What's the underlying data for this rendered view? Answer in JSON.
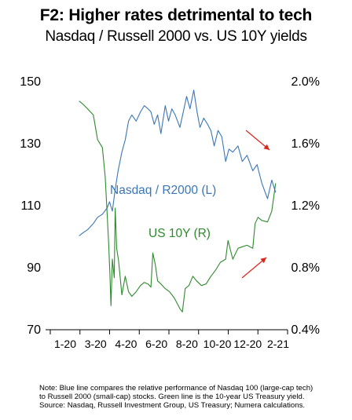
{
  "chart_data": {
    "type": "line",
    "title": "F2: Higher rates detrimental to tech",
    "subtitle": "Nasdaq / Russell 2000 vs. US 10Y yields",
    "x_ticks": [
      "1-20",
      "3-20",
      "4-20",
      "6-20",
      "8-20",
      "10-20",
      "12-20",
      "2-21"
    ],
    "left_axis": {
      "ticks": [
        "150",
        "130",
        "110",
        "90",
        "70"
      ],
      "ylim": [
        70,
        150
      ]
    },
    "right_axis": {
      "ticks": [
        "2.0%",
        "1.6%",
        "1.2%",
        "0.8%",
        "0.4%"
      ],
      "ylim": [
        0.4,
        2.0
      ]
    },
    "grid": false,
    "series": [
      {
        "name": "Nasdaq / R2000 (L)",
        "axis": "left",
        "color": "#3a76b5",
        "x": [
          "2020-01-02",
          "2020-01-10",
          "2020-01-20",
          "2020-02-01",
          "2020-02-10",
          "2020-02-20",
          "2020-03-01",
          "2020-03-06",
          "2020-03-12",
          "2020-03-18",
          "2020-03-24",
          "2020-04-01",
          "2020-04-08",
          "2020-04-15",
          "2020-04-22",
          "2020-05-01",
          "2020-05-10",
          "2020-05-18",
          "2020-05-26",
          "2020-06-01",
          "2020-06-08",
          "2020-06-15",
          "2020-06-22",
          "2020-07-01",
          "2020-07-08",
          "2020-07-15",
          "2020-07-22",
          "2020-08-01",
          "2020-08-08",
          "2020-08-15",
          "2020-08-22",
          "2020-08-30",
          "2020-09-06",
          "2020-09-12",
          "2020-09-20",
          "2020-09-28",
          "2020-10-05",
          "2020-10-12",
          "2020-10-20",
          "2020-10-28",
          "2020-11-05",
          "2020-11-12",
          "2020-11-20",
          "2020-12-01",
          "2020-12-10",
          "2020-12-20",
          "2021-01-01",
          "2021-01-10",
          "2021-01-20",
          "2021-02-01",
          "2021-02-10",
          "2021-02-18"
        ],
        "values": [
          100,
          101,
          102,
          104,
          106,
          107,
          109,
          111,
          108,
          115,
          121,
          127,
          131,
          137,
          139,
          137,
          140,
          142,
          141,
          140,
          136,
          139,
          133,
          142,
          137,
          141,
          139,
          135,
          140,
          145,
          141,
          147,
          140,
          135,
          138,
          136,
          134,
          129,
          134,
          132,
          124,
          128,
          127,
          129,
          124,
          126,
          121,
          123,
          117,
          112,
          118,
          114
        ]
      },
      {
        "name": "US 10Y (R)",
        "axis": "right",
        "color": "#2e8a2e",
        "x": [
          "2020-01-02",
          "2020-01-10",
          "2020-01-20",
          "2020-02-01",
          "2020-02-10",
          "2020-02-20",
          "2020-02-26",
          "2020-03-01",
          "2020-03-04",
          "2020-03-07",
          "2020-03-09",
          "2020-03-12",
          "2020-03-16",
          "2020-03-18",
          "2020-03-21",
          "2020-03-25",
          "2020-04-01",
          "2020-04-08",
          "2020-04-15",
          "2020-04-22",
          "2020-05-01",
          "2020-05-10",
          "2020-05-18",
          "2020-05-26",
          "2020-06-01",
          "2020-06-05",
          "2020-06-10",
          "2020-06-15",
          "2020-06-22",
          "2020-07-01",
          "2020-07-10",
          "2020-07-20",
          "2020-08-01",
          "2020-08-06",
          "2020-08-12",
          "2020-08-20",
          "2020-08-28",
          "2020-09-05",
          "2020-09-15",
          "2020-09-25",
          "2020-10-05",
          "2020-10-15",
          "2020-10-25",
          "2020-11-05",
          "2020-11-10",
          "2020-11-20",
          "2020-12-01",
          "2020-12-10",
          "2020-12-20",
          "2021-01-01",
          "2021-01-06",
          "2021-01-12",
          "2021-01-20",
          "2021-02-01",
          "2021-02-10",
          "2021-02-18"
        ],
        "values": [
          1.87,
          1.85,
          1.82,
          1.78,
          1.62,
          1.57,
          1.38,
          1.15,
          0.96,
          0.74,
          0.55,
          0.85,
          0.73,
          1.18,
          0.92,
          0.84,
          0.62,
          0.74,
          0.64,
          0.61,
          0.64,
          0.68,
          0.7,
          0.69,
          0.67,
          0.89,
          0.82,
          0.71,
          0.69,
          0.66,
          0.64,
          0.6,
          0.53,
          0.51,
          0.66,
          0.68,
          0.74,
          0.71,
          0.68,
          0.69,
          0.74,
          0.78,
          0.83,
          0.85,
          0.97,
          0.85,
          0.92,
          0.93,
          0.94,
          0.92,
          1.08,
          1.12,
          1.1,
          1.09,
          1.16,
          1.34
        ]
      }
    ],
    "annotations": [
      {
        "text": "Nasdaq / R2000 (L)",
        "color": "#3a76b5"
      },
      {
        "text": "US 10Y (R)",
        "color": "#2e8a2e"
      }
    ],
    "arrow_color": "#d9261c"
  },
  "note": {
    "lines": [
      "Note: Blue line compares the relative performance of Nasdaq 100 (large-cap tech)",
      "to Russell 2000 (small-cap) stocks. Green line is the 10-year US Treasury yield.",
      "Source: Nasdaq, Russell Investment Group, US Treasury; Numera calculations."
    ]
  }
}
